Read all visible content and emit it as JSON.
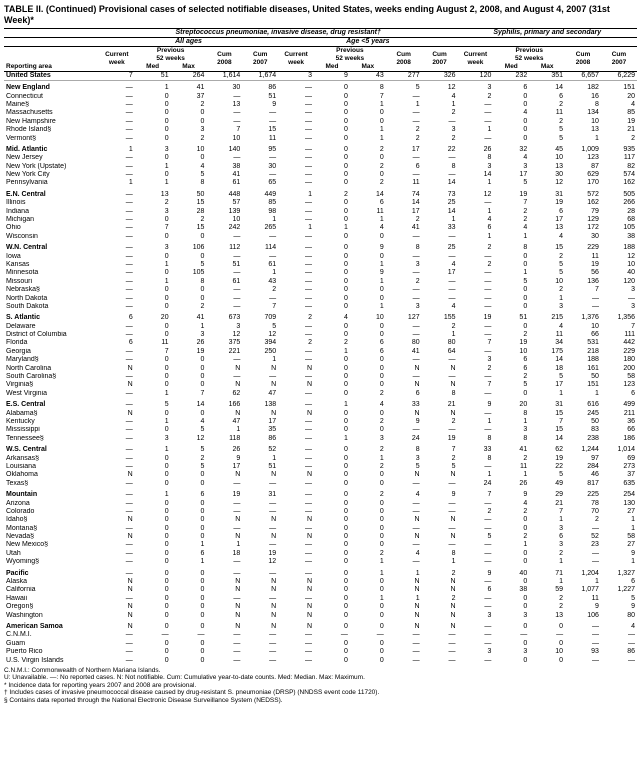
{
  "title": "TABLE II. (Continued) Provisional cases of selected notifiable diseases, United States, weeks ending August 2, 2008, and August 4, 2007 (31st Week)*",
  "group_headers": [
    "Streptococcus pneumoniae, invasive disease, drug resistant†",
    "Syphilis, primary and secondary"
  ],
  "sub_group_headers": [
    "All ages",
    "Age <5 years",
    ""
  ],
  "col_labels_top": [
    "Reporting area",
    "Current week",
    "Previous 52 weeks",
    "Cum 2008",
    "Cum 2007",
    "Current week",
    "Previous 52 weeks",
    "Cum 2008",
    "Cum 2007",
    "Current week",
    "Previous 52 weeks",
    "Cum 2008",
    "Cum 2007"
  ],
  "col_labels_sub": [
    "Med",
    "Max",
    "Med",
    "Max",
    "Med",
    "Max"
  ],
  "rows": [
    {
      "r": "United States",
      "cls": "us",
      "v": [
        "7",
        "51",
        "264",
        "1,614",
        "1,674",
        "3",
        "9",
        "43",
        "277",
        "326",
        "120",
        "232",
        "351",
        "6,657",
        "6,229"
      ]
    },
    {
      "r": "New England",
      "cls": "region",
      "v": [
        "—",
        "1",
        "41",
        "30",
        "86",
        "—",
        "0",
        "8",
        "5",
        "12",
        "3",
        "6",
        "14",
        "182",
        "151"
      ]
    },
    {
      "r": "Connecticut",
      "v": [
        "—",
        "0",
        "37",
        "—",
        "51",
        "—",
        "0",
        "7",
        "—",
        "4",
        "2",
        "0",
        "6",
        "16",
        "20"
      ]
    },
    {
      "r": "Maine§",
      "v": [
        "—",
        "0",
        "2",
        "13",
        "9",
        "—",
        "0",
        "1",
        "1",
        "1",
        "—",
        "0",
        "2",
        "8",
        "4"
      ]
    },
    {
      "r": "Massachusetts",
      "v": [
        "—",
        "0",
        "0",
        "—",
        "—",
        "—",
        "0",
        "0",
        "—",
        "2",
        "—",
        "4",
        "11",
        "134",
        "85"
      ]
    },
    {
      "r": "New Hampshire",
      "v": [
        "—",
        "0",
        "0",
        "—",
        "—",
        "—",
        "0",
        "0",
        "—",
        "—",
        "—",
        "0",
        "2",
        "10",
        "19"
      ]
    },
    {
      "r": "Rhode Island§",
      "v": [
        "—",
        "0",
        "3",
        "7",
        "15",
        "—",
        "0",
        "1",
        "2",
        "3",
        "1",
        "0",
        "5",
        "13",
        "21"
      ]
    },
    {
      "r": "Vermont§",
      "v": [
        "—",
        "0",
        "2",
        "10",
        "11",
        "—",
        "0",
        "1",
        "2",
        "2",
        "—",
        "0",
        "5",
        "1",
        "2"
      ]
    },
    {
      "r": "Mid. Atlantic",
      "cls": "region",
      "v": [
        "1",
        "3",
        "10",
        "140",
        "95",
        "—",
        "0",
        "2",
        "17",
        "22",
        "26",
        "32",
        "45",
        "1,009",
        "935"
      ]
    },
    {
      "r": "New Jersey",
      "v": [
        "—",
        "0",
        "0",
        "—",
        "—",
        "—",
        "0",
        "0",
        "—",
        "—",
        "8",
        "4",
        "10",
        "123",
        "117"
      ]
    },
    {
      "r": "New York (Upstate)",
      "v": [
        "—",
        "1",
        "4",
        "38",
        "30",
        "—",
        "0",
        "2",
        "6",
        "8",
        "3",
        "3",
        "13",
        "87",
        "82"
      ]
    },
    {
      "r": "New York City",
      "v": [
        "—",
        "0",
        "5",
        "41",
        "—",
        "—",
        "0",
        "0",
        "—",
        "—",
        "14",
        "17",
        "30",
        "629",
        "574"
      ]
    },
    {
      "r": "Pennsylvania",
      "v": [
        "1",
        "1",
        "8",
        "61",
        "65",
        "—",
        "0",
        "2",
        "11",
        "14",
        "1",
        "5",
        "12",
        "170",
        "162"
      ]
    },
    {
      "r": "E.N. Central",
      "cls": "region",
      "v": [
        "—",
        "13",
        "50",
        "448",
        "449",
        "1",
        "2",
        "14",
        "74",
        "73",
        "12",
        "19",
        "31",
        "572",
        "505"
      ]
    },
    {
      "r": "Illinois",
      "v": [
        "—",
        "2",
        "15",
        "57",
        "85",
        "—",
        "0",
        "6",
        "14",
        "25",
        "—",
        "7",
        "19",
        "162",
        "266"
      ]
    },
    {
      "r": "Indiana",
      "v": [
        "—",
        "3",
        "28",
        "139",
        "98",
        "—",
        "0",
        "11",
        "17",
        "14",
        "1",
        "2",
        "6",
        "79",
        "28"
      ]
    },
    {
      "r": "Michigan",
      "v": [
        "—",
        "0",
        "2",
        "10",
        "1",
        "—",
        "0",
        "1",
        "2",
        "1",
        "4",
        "2",
        "17",
        "129",
        "68"
      ]
    },
    {
      "r": "Ohio",
      "v": [
        "—",
        "7",
        "15",
        "242",
        "265",
        "1",
        "1",
        "4",
        "41",
        "33",
        "6",
        "4",
        "13",
        "172",
        "105"
      ]
    },
    {
      "r": "Wisconsin",
      "v": [
        "—",
        "0",
        "0",
        "—",
        "—",
        "—",
        "0",
        "0",
        "—",
        "—",
        "1",
        "1",
        "4",
        "30",
        "38"
      ]
    },
    {
      "r": "W.N. Central",
      "cls": "region",
      "v": [
        "—",
        "3",
        "106",
        "112",
        "114",
        "—",
        "0",
        "9",
        "8",
        "25",
        "2",
        "8",
        "15",
        "229",
        "188"
      ]
    },
    {
      "r": "Iowa",
      "v": [
        "—",
        "0",
        "0",
        "—",
        "—",
        "—",
        "0",
        "0",
        "—",
        "—",
        "—",
        "0",
        "2",
        "11",
        "12"
      ]
    },
    {
      "r": "Kansas",
      "v": [
        "—",
        "1",
        "5",
        "51",
        "61",
        "—",
        "0",
        "1",
        "3",
        "4",
        "2",
        "0",
        "5",
        "19",
        "10"
      ]
    },
    {
      "r": "Minnesota",
      "v": [
        "—",
        "0",
        "105",
        "—",
        "1",
        "—",
        "0",
        "9",
        "—",
        "17",
        "—",
        "1",
        "5",
        "56",
        "40"
      ]
    },
    {
      "r": "Missouri",
      "v": [
        "—",
        "1",
        "8",
        "61",
        "43",
        "—",
        "0",
        "1",
        "2",
        "—",
        "—",
        "5",
        "10",
        "136",
        "120"
      ]
    },
    {
      "r": "Nebraska§",
      "v": [
        "—",
        "0",
        "0",
        "—",
        "2",
        "—",
        "0",
        "0",
        "—",
        "—",
        "—",
        "0",
        "2",
        "7",
        "3"
      ]
    },
    {
      "r": "North Dakota",
      "v": [
        "—",
        "0",
        "0",
        "—",
        "—",
        "—",
        "0",
        "0",
        "—",
        "—",
        "—",
        "0",
        "1",
        "—",
        "—"
      ]
    },
    {
      "r": "South Dakota",
      "v": [
        "—",
        "0",
        "2",
        "—",
        "7",
        "—",
        "0",
        "1",
        "3",
        "4",
        "—",
        "0",
        "3",
        "—",
        "3"
      ]
    },
    {
      "r": "S. Atlantic",
      "cls": "region",
      "v": [
        "6",
        "20",
        "41",
        "673",
        "709",
        "2",
        "4",
        "10",
        "127",
        "155",
        "19",
        "51",
        "215",
        "1,376",
        "1,356"
      ]
    },
    {
      "r": "Delaware",
      "v": [
        "—",
        "0",
        "1",
        "3",
        "5",
        "—",
        "0",
        "0",
        "—",
        "2",
        "—",
        "0",
        "4",
        "10",
        "7"
      ]
    },
    {
      "r": "District of Columbia",
      "v": [
        "—",
        "0",
        "3",
        "12",
        "12",
        "—",
        "0",
        "0",
        "—",
        "1",
        "—",
        "2",
        "11",
        "66",
        "111"
      ]
    },
    {
      "r": "Florida",
      "v": [
        "6",
        "11",
        "26",
        "375",
        "394",
        "2",
        "2",
        "6",
        "80",
        "80",
        "7",
        "19",
        "34",
        "531",
        "442"
      ]
    },
    {
      "r": "Georgia",
      "v": [
        "—",
        "7",
        "19",
        "221",
        "250",
        "—",
        "1",
        "6",
        "41",
        "64",
        "—",
        "10",
        "175",
        "218",
        "229"
      ]
    },
    {
      "r": "Maryland§",
      "v": [
        "—",
        "0",
        "0",
        "—",
        "1",
        "—",
        "0",
        "0",
        "—",
        "—",
        "3",
        "6",
        "14",
        "188",
        "180"
      ]
    },
    {
      "r": "North Carolina",
      "v": [
        "N",
        "0",
        "0",
        "N",
        "N",
        "N",
        "0",
        "0",
        "N",
        "N",
        "2",
        "6",
        "18",
        "161",
        "200"
      ]
    },
    {
      "r": "South Carolina§",
      "v": [
        "—",
        "0",
        "0",
        "—",
        "—",
        "—",
        "0",
        "0",
        "—",
        "—",
        "—",
        "2",
        "5",
        "50",
        "58"
      ]
    },
    {
      "r": "Virginia§",
      "v": [
        "N",
        "0",
        "0",
        "N",
        "N",
        "N",
        "0",
        "0",
        "N",
        "N",
        "7",
        "5",
        "17",
        "151",
        "123"
      ]
    },
    {
      "r": "West Virginia",
      "v": [
        "—",
        "1",
        "7",
        "62",
        "47",
        "—",
        "0",
        "2",
        "6",
        "8",
        "—",
        "0",
        "1",
        "1",
        "6"
      ]
    },
    {
      "r": "E.S. Central",
      "cls": "region",
      "v": [
        "—",
        "5",
        "14",
        "166",
        "138",
        "—",
        "1",
        "4",
        "33",
        "21",
        "9",
        "20",
        "31",
        "616",
        "499"
      ]
    },
    {
      "r": "Alabama§",
      "v": [
        "N",
        "0",
        "0",
        "N",
        "N",
        "N",
        "0",
        "0",
        "N",
        "N",
        "—",
        "8",
        "15",
        "245",
        "211"
      ]
    },
    {
      "r": "Kentucky",
      "v": [
        "—",
        "1",
        "4",
        "47",
        "17",
        "—",
        "0",
        "2",
        "9",
        "2",
        "1",
        "1",
        "7",
        "50",
        "36"
      ]
    },
    {
      "r": "Mississippi",
      "v": [
        "—",
        "0",
        "5",
        "1",
        "35",
        "—",
        "0",
        "0",
        "—",
        "—",
        "—",
        "3",
        "15",
        "83",
        "66"
      ]
    },
    {
      "r": "Tennessee§",
      "v": [
        "—",
        "3",
        "12",
        "118",
        "86",
        "—",
        "1",
        "3",
        "24",
        "19",
        "8",
        "8",
        "14",
        "238",
        "186"
      ]
    },
    {
      "r": "W.S. Central",
      "cls": "region",
      "v": [
        "—",
        "1",
        "5",
        "26",
        "52",
        "—",
        "0",
        "2",
        "8",
        "7",
        "33",
        "41",
        "62",
        "1,244",
        "1,014"
      ]
    },
    {
      "r": "Arkansas§",
      "v": [
        "—",
        "0",
        "2",
        "9",
        "1",
        "—",
        "0",
        "1",
        "3",
        "2",
        "8",
        "2",
        "19",
        "97",
        "69"
      ]
    },
    {
      "r": "Louisiana",
      "v": [
        "—",
        "0",
        "5",
        "17",
        "51",
        "—",
        "0",
        "2",
        "5",
        "5",
        "—",
        "11",
        "22",
        "284",
        "273"
      ]
    },
    {
      "r": "Oklahoma",
      "v": [
        "N",
        "0",
        "0",
        "N",
        "N",
        "N",
        "0",
        "0",
        "N",
        "N",
        "1",
        "1",
        "5",
        "46",
        "37"
      ]
    },
    {
      "r": "Texas§",
      "v": [
        "—",
        "0",
        "0",
        "—",
        "—",
        "—",
        "0",
        "0",
        "—",
        "—",
        "24",
        "26",
        "49",
        "817",
        "635"
      ]
    },
    {
      "r": "Mountain",
      "cls": "region",
      "v": [
        "—",
        "1",
        "6",
        "19",
        "31",
        "—",
        "0",
        "2",
        "4",
        "9",
        "7",
        "9",
        "29",
        "225",
        "254"
      ]
    },
    {
      "r": "Arizona",
      "v": [
        "—",
        "0",
        "0",
        "—",
        "—",
        "—",
        "0",
        "0",
        "—",
        "—",
        "—",
        "4",
        "21",
        "78",
        "130"
      ]
    },
    {
      "r": "Colorado",
      "v": [
        "—",
        "0",
        "0",
        "—",
        "—",
        "—",
        "0",
        "0",
        "—",
        "—",
        "2",
        "2",
        "7",
        "70",
        "27"
      ]
    },
    {
      "r": "Idaho§",
      "v": [
        "N",
        "0",
        "0",
        "N",
        "N",
        "N",
        "0",
        "0",
        "N",
        "N",
        "—",
        "0",
        "1",
        "2",
        "1"
      ]
    },
    {
      "r": "Montana§",
      "v": [
        "—",
        "0",
        "0",
        "—",
        "—",
        "—",
        "0",
        "0",
        "—",
        "—",
        "—",
        "0",
        "3",
        "—",
        "1"
      ]
    },
    {
      "r": "Nevada§",
      "v": [
        "N",
        "0",
        "0",
        "N",
        "N",
        "N",
        "0",
        "0",
        "N",
        "N",
        "5",
        "2",
        "6",
        "52",
        "58"
      ]
    },
    {
      "r": "New Mexico§",
      "v": [
        "—",
        "0",
        "1",
        "1",
        "—",
        "—",
        "0",
        "0",
        "—",
        "—",
        "—",
        "1",
        "3",
        "23",
        "27"
      ]
    },
    {
      "r": "Utah",
      "v": [
        "—",
        "0",
        "6",
        "18",
        "19",
        "—",
        "0",
        "2",
        "4",
        "8",
        "—",
        "0",
        "2",
        "—",
        "9"
      ]
    },
    {
      "r": "Wyoming§",
      "v": [
        "—",
        "0",
        "1",
        "—",
        "12",
        "—",
        "0",
        "1",
        "—",
        "1",
        "—",
        "0",
        "1",
        "—",
        "1"
      ]
    },
    {
      "r": "Pacific",
      "cls": "region",
      "v": [
        "—",
        "0",
        "0",
        "—",
        "—",
        "—",
        "0",
        "1",
        "1",
        "2",
        "9",
        "40",
        "71",
        "1,204",
        "1,327"
      ]
    },
    {
      "r": "Alaska",
      "v": [
        "N",
        "0",
        "0",
        "N",
        "N",
        "N",
        "0",
        "0",
        "N",
        "N",
        "—",
        "0",
        "1",
        "1",
        "6"
      ]
    },
    {
      "r": "California",
      "v": [
        "N",
        "0",
        "0",
        "N",
        "N",
        "N",
        "0",
        "0",
        "N",
        "N",
        "6",
        "38",
        "59",
        "1,077",
        "1,227"
      ]
    },
    {
      "r": "Hawaii",
      "v": [
        "—",
        "0",
        "0",
        "—",
        "—",
        "—",
        "0",
        "1",
        "1",
        "2",
        "—",
        "0",
        "2",
        "11",
        "5"
      ]
    },
    {
      "r": "Oregon§",
      "v": [
        "N",
        "0",
        "0",
        "N",
        "N",
        "N",
        "0",
        "0",
        "N",
        "N",
        "—",
        "0",
        "2",
        "9",
        "9"
      ]
    },
    {
      "r": "Washington",
      "v": [
        "N",
        "0",
        "0",
        "N",
        "N",
        "N",
        "0",
        "0",
        "N",
        "N",
        "3",
        "3",
        "13",
        "106",
        "80"
      ]
    },
    {
      "r": "American Samoa",
      "cls": "region",
      "v": [
        "N",
        "0",
        "0",
        "N",
        "N",
        "N",
        "0",
        "0",
        "N",
        "N",
        "—",
        "0",
        "0",
        "—",
        "4"
      ]
    },
    {
      "r": "C.N.M.I.",
      "v": [
        "—",
        "—",
        "—",
        "—",
        "—",
        "—",
        "—",
        "—",
        "—",
        "—",
        "—",
        "—",
        "—",
        "—",
        "—"
      ]
    },
    {
      "r": "Guam",
      "v": [
        "—",
        "0",
        "0",
        "—",
        "—",
        "—",
        "0",
        "0",
        "—",
        "—",
        "—",
        "0",
        "0",
        "—",
        "—"
      ]
    },
    {
      "r": "Puerto Rico",
      "v": [
        "—",
        "0",
        "0",
        "—",
        "—",
        "—",
        "0",
        "0",
        "—",
        "—",
        "3",
        "3",
        "10",
        "93",
        "86"
      ]
    },
    {
      "r": "U.S. Virgin Islands",
      "v": [
        "—",
        "0",
        "0",
        "—",
        "—",
        "—",
        "0",
        "0",
        "—",
        "—",
        "—",
        "0",
        "0",
        "—",
        "—"
      ]
    }
  ],
  "footnotes": [
    "C.N.M.I.: Commonwealth of Northern Mariana Islands.",
    "U: Unavailable.   —: No reported cases.   N: Not notifiable.   Cum: Cumulative year-to-date counts.   Med: Median.   Max: Maximum.",
    "* Incidence data for reporting years 2007 and 2008 are provisional.",
    "† Includes cases of invasive pneumococcal disease caused by drug-resistant S. pneumoniae (DRSP) (NNDSS event code 11720).",
    "§ Contains data reported through the National Electronic Disease Surveillance System (NEDSS)."
  ],
  "style": {
    "title_fontsize": 9,
    "body_fontsize": 7,
    "foot_fontsize": 6.5,
    "border_color": "#000",
    "font_family": "Arial",
    "num_align": "right",
    "region_bold": true
  }
}
